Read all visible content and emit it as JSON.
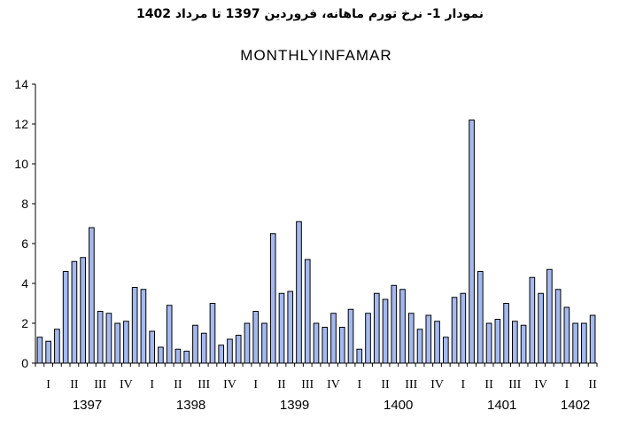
{
  "caption": "نمودار 1- نرخ تورم ماهانه، فروردین 1397 تا مرداد 1402",
  "chart_data": {
    "type": "bar",
    "title": "MONTHLYINFAMAR",
    "xlabel": "",
    "ylabel": "",
    "ylim": [
      0,
      14
    ],
    "yticks": [
      0,
      2,
      4,
      6,
      8,
      10,
      12,
      14
    ],
    "quarters": [
      "I",
      "II",
      "III",
      "IV",
      "I",
      "II",
      "III",
      "IV",
      "I",
      "II",
      "III",
      "IV",
      "I",
      "II",
      "III",
      "IV",
      "I",
      "II",
      "III",
      "IV",
      "I",
      "II"
    ],
    "years": [
      "1397",
      "1398",
      "1399",
      "1400",
      "1401",
      "1402"
    ],
    "values": [
      1.3,
      1.1,
      1.7,
      4.6,
      5.1,
      5.3,
      6.8,
      2.6,
      2.5,
      2.0,
      2.1,
      3.8,
      3.7,
      1.6,
      0.8,
      2.9,
      0.7,
      0.6,
      1.9,
      1.5,
      3.0,
      0.9,
      1.2,
      1.4,
      2.0,
      2.6,
      2.0,
      6.5,
      3.5,
      3.6,
      7.1,
      5.2,
      2.0,
      1.8,
      2.5,
      1.8,
      2.7,
      0.7,
      2.5,
      3.5,
      3.2,
      3.9,
      3.7,
      2.5,
      1.7,
      2.4,
      2.1,
      1.3,
      3.3,
      3.5,
      12.2,
      4.6,
      2.0,
      2.2,
      3.0,
      2.1,
      1.9,
      4.3,
      3.5,
      4.7,
      3.7,
      2.8,
      2.0,
      2.0,
      2.4
    ],
    "bar_color": "#a3b9ef",
    "bar_stroke": "#000000",
    "grid": false
  }
}
